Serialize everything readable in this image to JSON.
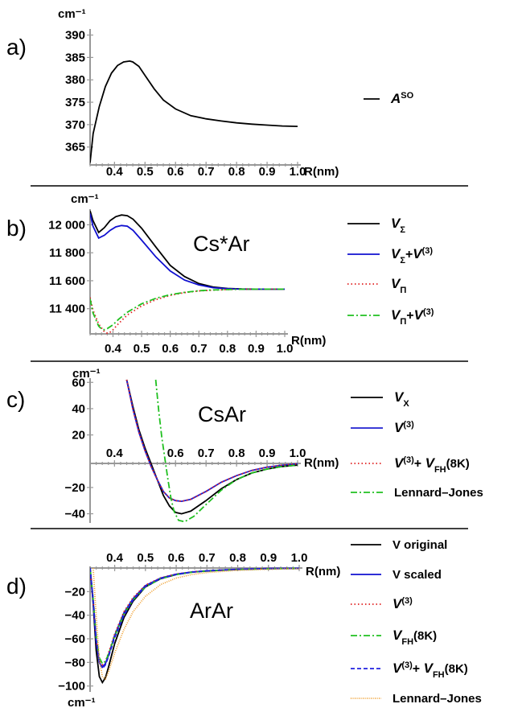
{
  "chart_data": [
    {
      "panel": "a)",
      "type": "line",
      "ylabel": "cm⁻¹",
      "xlabel": "R(nm)",
      "xlim": [
        0.32,
        1.0
      ],
      "ylim": [
        361,
        391
      ],
      "xticks": [
        "0.4",
        "0.5",
        "0.6",
        "0.7",
        "0.8",
        "0.9",
        "1.0"
      ],
      "yticks": [
        "365",
        "370",
        "375",
        "380",
        "385",
        "390"
      ],
      "series": [
        {
          "name": "A^SO",
          "legend_main": "A",
          "legend_sup": "SO",
          "color": "#000000",
          "dash": "solid",
          "x": [
            0.32,
            0.33,
            0.35,
            0.37,
            0.39,
            0.41,
            0.43,
            0.45,
            0.46,
            0.48,
            0.5,
            0.53,
            0.56,
            0.6,
            0.65,
            0.7,
            0.75,
            0.8,
            0.85,
            0.9,
            0.95,
            1.0
          ],
          "y": [
            361.5,
            368,
            374,
            378.5,
            381.5,
            383.2,
            384,
            384.2,
            384,
            383,
            381,
            378,
            375.5,
            373.5,
            372,
            371.3,
            370.8,
            370.4,
            370.1,
            369.9,
            369.7,
            369.6
          ]
        }
      ]
    },
    {
      "panel": "b)",
      "type": "line",
      "annotation": "Cs*Ar",
      "ylabel": "cm⁻¹",
      "xlabel": "R(nm)",
      "xlim": [
        0.32,
        1.0
      ],
      "ylim": [
        11220,
        12100
      ],
      "xticks": [
        "0.4",
        "0.5",
        "0.6",
        "0.7",
        "0.8",
        "0.9",
        "1.0"
      ],
      "yticks": [
        "11 400",
        "11 600",
        "11 800",
        "12 000"
      ],
      "series": [
        {
          "name": "V_Σ",
          "legend_main": "V",
          "legend_sub": "Σ",
          "legend_rest": "",
          "color": "#000000",
          "dash": "solid",
          "x": [
            0.32,
            0.33,
            0.35,
            0.37,
            0.39,
            0.41,
            0.43,
            0.45,
            0.47,
            0.5,
            0.55,
            0.6,
            0.65,
            0.7,
            0.75,
            0.8,
            0.85,
            0.9,
            1.0
          ],
          "y": [
            12100,
            12030,
            11945,
            11980,
            12030,
            12058,
            12070,
            12065,
            12040,
            11975,
            11840,
            11710,
            11630,
            11580,
            11555,
            11545,
            11541,
            11540,
            11540
          ]
        },
        {
          "name": "V_Σ+V^(3)",
          "legend_main": "V",
          "legend_sub": "Σ",
          "legend_rest": "+V",
          "legend_sup2": "(3)",
          "color": "#1010d0",
          "dash": "solid",
          "x": [
            0.32,
            0.33,
            0.35,
            0.37,
            0.39,
            0.41,
            0.43,
            0.45,
            0.47,
            0.5,
            0.55,
            0.6,
            0.65,
            0.7,
            0.75,
            0.8,
            0.85,
            0.9,
            1.0
          ],
          "y": [
            12080,
            11990,
            11905,
            11925,
            11960,
            11985,
            11995,
            11990,
            11960,
            11890,
            11770,
            11670,
            11605,
            11570,
            11550,
            11543,
            11540,
            11540,
            11540
          ]
        },
        {
          "name": "V_Π",
          "legend_main": "V",
          "legend_sub": "Π",
          "legend_rest": "",
          "color": "#e02020",
          "dash": "1.5,3",
          "x": [
            0.32,
            0.33,
            0.35,
            0.37,
            0.38,
            0.39,
            0.4,
            0.42,
            0.45,
            0.5,
            0.55,
            0.6,
            0.65,
            0.7,
            0.75,
            0.8,
            0.85,
            0.9,
            1.0
          ],
          "y": [
            11480,
            11390,
            11290,
            11235,
            11225,
            11232,
            11250,
            11295,
            11355,
            11420,
            11465,
            11495,
            11515,
            11527,
            11533,
            11537,
            11539,
            11540,
            11540
          ]
        },
        {
          "name": "V_Π+V^(3)",
          "legend_main": "V",
          "legend_sub": "Π",
          "legend_rest": "+V",
          "legend_sup2": "(3)",
          "color": "#20c020",
          "dash": "8,3,2,3",
          "x": [
            0.32,
            0.33,
            0.35,
            0.36,
            0.37,
            0.38,
            0.4,
            0.42,
            0.45,
            0.5,
            0.55,
            0.6,
            0.65,
            0.7,
            0.75,
            0.8,
            0.85,
            0.9,
            1.0
          ],
          "y": [
            11470,
            11370,
            11275,
            11255,
            11250,
            11258,
            11285,
            11325,
            11375,
            11435,
            11475,
            11500,
            11517,
            11528,
            11534,
            11537,
            11539,
            11540,
            11540
          ]
        }
      ]
    },
    {
      "panel": "c)",
      "type": "line",
      "annotation": "CsAr",
      "ylabel": "cm⁻¹",
      "xlabel": "R(nm)",
      "xlim": [
        0.32,
        1.0
      ],
      "ylim": [
        -47,
        62
      ],
      "xticks": [
        "0.4",
        "0.6",
        "0.7",
        "0.8",
        "0.9",
        "1.0"
      ],
      "xtick_values": [
        0.4,
        0.6,
        0.7,
        0.8,
        0.9,
        1.0
      ],
      "yticks": [
        "60",
        "40",
        "20",
        "-20",
        "-40"
      ],
      "series": [
        {
          "name": "V_X",
          "legend_main": "V",
          "legend_sub": "X",
          "color": "#000000",
          "dash": "solid",
          "x": [
            0.44,
            0.46,
            0.48,
            0.5,
            0.52,
            0.54,
            0.56,
            0.58,
            0.6,
            0.62,
            0.65,
            0.7,
            0.75,
            0.8,
            0.85,
            0.9,
            0.95,
            1.0
          ],
          "y": [
            62,
            42,
            24,
            10,
            -2,
            -14,
            -26,
            -34,
            -39,
            -40,
            -38,
            -30,
            -21,
            -14,
            -9,
            -6,
            -4,
            -3
          ]
        },
        {
          "name": "V^(3)",
          "legend_main": "V",
          "legend_sup": "(3)",
          "color": "#2020d0",
          "dash": "solid",
          "x": [
            0.44,
            0.46,
            0.48,
            0.5,
            0.52,
            0.54,
            0.56,
            0.58,
            0.6,
            0.62,
            0.65,
            0.7,
            0.75,
            0.8,
            0.85,
            0.9,
            0.95,
            1.0
          ],
          "y": [
            62,
            40,
            22,
            8,
            -4,
            -14,
            -23,
            -28,
            -30,
            -30.5,
            -29,
            -23,
            -16,
            -11,
            -7,
            -4.5,
            -3,
            -2
          ]
        },
        {
          "name": "V^(3)+ V_FH(8K)",
          "legend_main": "V",
          "legend_sup": "(3)",
          "legend_rest": "+ V",
          "legend_sub2": "FH",
          "legend_tail": "(8K)",
          "color": "#e02020",
          "dash": "1.5,3",
          "x": [
            0.44,
            0.46,
            0.48,
            0.5,
            0.52,
            0.54,
            0.56,
            0.58,
            0.6,
            0.62,
            0.65,
            0.7,
            0.75,
            0.8,
            0.85,
            0.9,
            0.95,
            1.0
          ],
          "y": [
            62,
            40,
            22,
            8,
            -4,
            -14,
            -23,
            -28,
            -30,
            -30.5,
            -29,
            -23,
            -16,
            -11,
            -7,
            -4.5,
            -3,
            -2
          ]
        },
        {
          "name": "Lennard–Jones",
          "legend_main": "Lennard–Jones",
          "color": "#20c020",
          "dash": "8,3,2,3",
          "x": [
            0.535,
            0.545,
            0.555,
            0.565,
            0.575,
            0.585,
            0.595,
            0.61,
            0.63,
            0.66,
            0.7,
            0.75,
            0.8,
            0.85,
            0.9,
            0.95,
            1.0
          ],
          "y": [
            62,
            38,
            18,
            2,
            -14,
            -28,
            -38,
            -45,
            -46,
            -42,
            -33,
            -22,
            -14,
            -9,
            -6,
            -4,
            -3
          ]
        }
      ]
    },
    {
      "panel": "d)",
      "type": "line",
      "annotation": "ArAr",
      "ylabel": "cm⁻¹",
      "xlabel": "R(nm)",
      "xlim": [
        0.32,
        1.0
      ],
      "ylim": [
        -105,
        0
      ],
      "xticks": [
        "0.4",
        "0.5",
        "0.6",
        "0.7",
        "0.8",
        "0.9",
        "1.0"
      ],
      "yticks": [
        "-20",
        "-40",
        "-60",
        "-80",
        "-100"
      ],
      "series": [
        {
          "name": "V original",
          "legend_main": "V original",
          "color": "#000000",
          "dash": "solid",
          "x": [
            0.32,
            0.33,
            0.34,
            0.35,
            0.36,
            0.37,
            0.38,
            0.4,
            0.43,
            0.46,
            0.5,
            0.55,
            0.6,
            0.65,
            0.7,
            0.8,
            0.9,
            1.0
          ],
          "y": [
            0,
            -30,
            -70,
            -92,
            -97,
            -93,
            -84,
            -64,
            -42,
            -28,
            -16,
            -9,
            -5.5,
            -3.5,
            -2.5,
            -1.2,
            -0.6,
            -0.3
          ]
        },
        {
          "name": "V scaled",
          "legend_main": "V scaled",
          "color": "#1010d0",
          "dash": "solid",
          "x": [
            0.32,
            0.33,
            0.34,
            0.35,
            0.36,
            0.37,
            0.38,
            0.4,
            0.43,
            0.46,
            0.5,
            0.55,
            0.6,
            0.65,
            0.7,
            0.8,
            0.9,
            1.0
          ],
          "y": [
            0,
            -28,
            -62,
            -80,
            -84,
            -81,
            -74,
            -57,
            -38,
            -26,
            -15,
            -8.5,
            -5.2,
            -3.4,
            -2.4,
            -1.1,
            -0.5,
            -0.3
          ]
        },
        {
          "name": "V^(3)",
          "legend_main": "V",
          "legend_sup": "(3)",
          "color": "#e02020",
          "dash": "1.5,3",
          "x": [
            0.32,
            0.33,
            0.34,
            0.35,
            0.36,
            0.37,
            0.38,
            0.4,
            0.43,
            0.46,
            0.5,
            0.55,
            0.6,
            0.65,
            0.7,
            0.8,
            0.9,
            1.0
          ],
          "y": [
            0,
            -27,
            -60,
            -78,
            -82,
            -79,
            -72,
            -56,
            -37,
            -25,
            -14.5,
            -8.3,
            -5.1,
            -3.3,
            -2.3,
            -1.1,
            -0.5,
            -0.3
          ]
        },
        {
          "name": "V_FH(8K)",
          "legend_main": "V",
          "legend_sub": "FH",
          "legend_tail": "(8K)",
          "color": "#20c020",
          "dash": "8,3,2,3",
          "x": [
            0.32,
            0.33,
            0.34,
            0.35,
            0.36,
            0.37,
            0.38,
            0.4,
            0.43,
            0.46,
            0.5,
            0.55,
            0.6,
            0.65,
            0.7,
            0.8,
            0.9,
            1.0
          ],
          "y": [
            0,
            -26,
            -58,
            -76,
            -81,
            -79,
            -73,
            -58,
            -39,
            -27,
            -16,
            -9,
            -5.5,
            -3.6,
            -2.5,
            -1.2,
            -0.6,
            -0.3
          ]
        },
        {
          "name": "V^(3)+ V_FH(8K)",
          "legend_main": "V",
          "legend_sup": "(3)",
          "legend_rest": "+ V",
          "legend_sub2": "FH",
          "legend_tail": "(8K)",
          "color": "#2020e0",
          "dash": "5,3",
          "x": [
            0.32,
            0.33,
            0.34,
            0.35,
            0.36,
            0.37,
            0.38,
            0.4,
            0.43,
            0.46,
            0.5,
            0.55,
            0.6,
            0.65,
            0.7,
            0.8,
            0.9,
            1.0
          ],
          "y": [
            0,
            -27,
            -61,
            -80,
            -85,
            -82,
            -75,
            -59,
            -40,
            -27,
            -15.5,
            -8.8,
            -5.4,
            -3.5,
            -2.4,
            -1.1,
            -0.5,
            -0.3
          ]
        },
        {
          "name": "Lennard–Jones",
          "legend_main": "Lennard–Jones",
          "color": "#f0a030",
          "dash": "1,1.5",
          "x": [
            0.33,
            0.34,
            0.35,
            0.36,
            0.37,
            0.38,
            0.4,
            0.43,
            0.46,
            0.5,
            0.55,
            0.6,
            0.65,
            0.7,
            0.8,
            0.9,
            1.0
          ],
          "y": [
            0,
            -40,
            -78,
            -92,
            -94,
            -88,
            -72,
            -52,
            -37,
            -24,
            -14,
            -8.5,
            -5.5,
            -3.8,
            -1.9,
            -1.0,
            -0.6
          ]
        }
      ]
    }
  ]
}
